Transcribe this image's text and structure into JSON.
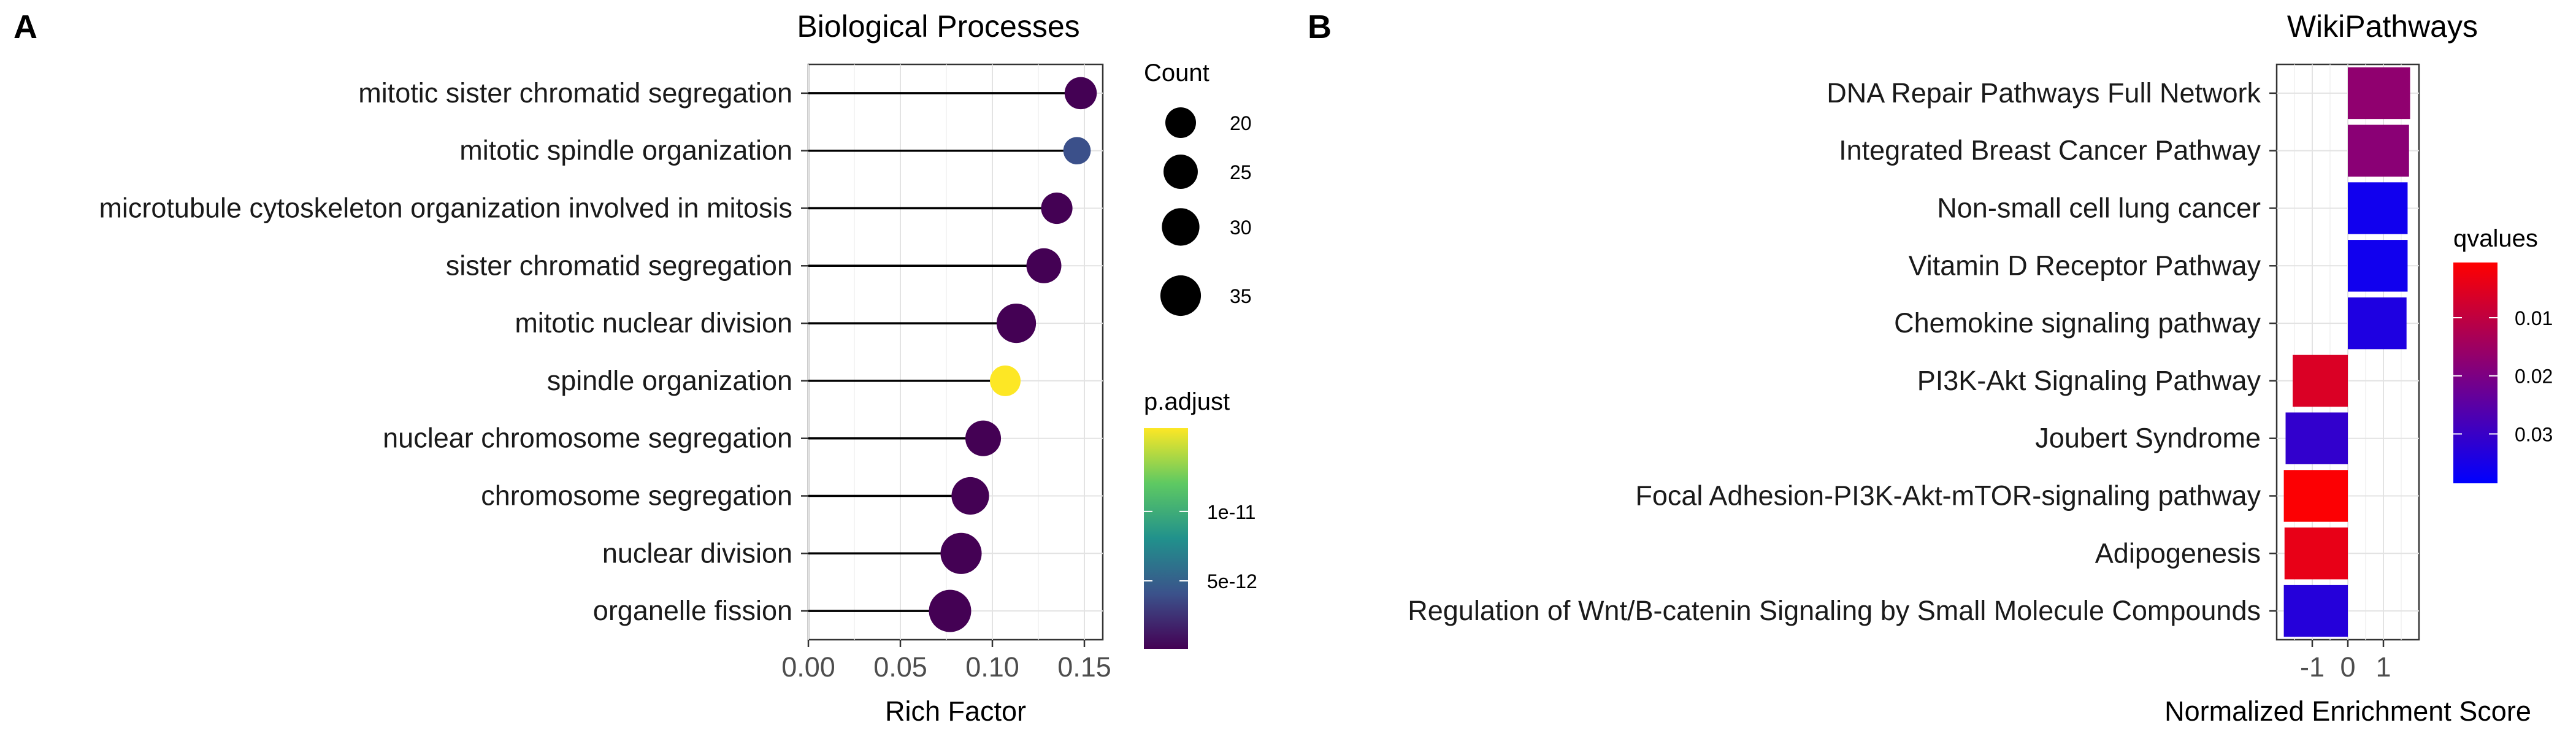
{
  "chart_data": [
    {
      "panel": "A",
      "type": "scatter",
      "title": "Biological Processes",
      "xlabel": "Rich Factor",
      "ylabel": "",
      "xlim": [
        0,
        0.16
      ],
      "x_ticks": [
        0,
        0.05,
        0.1,
        0.15
      ],
      "x_tick_labels": [
        "0.00",
        "0.05",
        "0.10",
        "0.15"
      ],
      "grid": true,
      "legend_position": "right",
      "categories": [
        "mitotic sister chromatid segregation",
        "mitotic spindle organization",
        "microtubule cytoskeleton organization involved in mitosis",
        "sister chromatid segregation",
        "mitotic nuclear division",
        "spindle organization",
        "nuclear chromosome segregation",
        "chromosome segregation",
        "nuclear division",
        "organelle fission"
      ],
      "rich_factor": [
        0.148,
        0.146,
        0.135,
        0.128,
        0.113,
        0.107,
        0.095,
        0.088,
        0.083,
        0.077
      ],
      "count": [
        22,
        16,
        21,
        26,
        33,
        20,
        27,
        30,
        36,
        38
      ],
      "p_adjust": [
        1e-13,
        4e-12,
        1e-13,
        1e-13,
        1e-13,
        1.6e-11,
        1e-13,
        1e-13,
        1e-13,
        1e-13
      ],
      "size_legend": {
        "title": "Count",
        "values": [
          20,
          25,
          30,
          35
        ],
        "labels": [
          "20",
          "25",
          "30",
          "35"
        ]
      },
      "color_legend": {
        "title": "p.adjust",
        "range": [
          1e-13,
          1.6e-11
        ],
        "breaks": [
          5e-12,
          1e-11
        ],
        "labels": [
          "5e-12",
          "1e-11"
        ],
        "colormap": [
          "#440154",
          "#3b528b",
          "#21918c",
          "#5ec962",
          "#fde725"
        ]
      }
    },
    {
      "panel": "B",
      "type": "bar",
      "orientation": "horizontal",
      "title": "WikiPathways",
      "xlabel": "Normalized Enrichment Score",
      "ylabel": "",
      "xlim": [
        -2.0,
        2.0
      ],
      "x_ticks": [
        -1,
        0,
        1
      ],
      "x_tick_labels": [
        "-1",
        "0",
        "1"
      ],
      "grid": true,
      "legend_position": "right",
      "categories": [
        "DNA Repair Pathways Full Network",
        "Integrated Breast Cancer Pathway",
        "Non-small cell lung cancer",
        "Vitamin D Receptor Pathway",
        "Chemokine signaling pathway",
        "PI3K-Akt Signaling Pathway",
        "Joubert Syndrome",
        "Focal Adhesion-PI3K-Akt-mTOR-signaling pathway",
        "Adipogenesis",
        "Regulation of Wnt/B-catenin Signaling by Small Molecule Compounds"
      ],
      "values": [
        1.75,
        1.72,
        1.68,
        1.68,
        1.65,
        -1.55,
        -1.75,
        -1.8,
        -1.78,
        -1.8
      ],
      "qvalues": [
        0.017,
        0.018,
        0.036,
        0.036,
        0.034,
        0.006,
        0.031,
        0.001,
        0.004,
        0.033
      ],
      "color_legend": {
        "title": "qvalues",
        "range": [
          0.0005,
          0.0385
        ],
        "breaks": [
          0.01,
          0.02,
          0.03
        ],
        "labels": [
          "0.01",
          "0.02",
          "0.03"
        ],
        "colormap": [
          "#ff0000",
          "#0000ff"
        ]
      }
    }
  ]
}
